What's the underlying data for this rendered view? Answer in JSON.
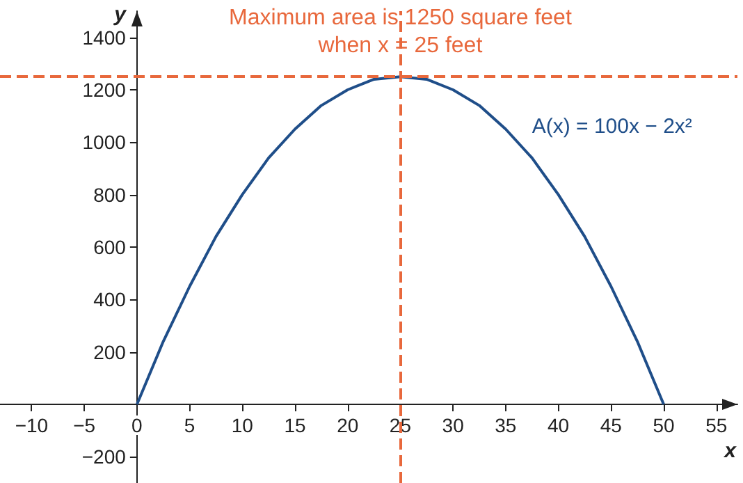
{
  "chart_data": {
    "type": "line",
    "x": [
      0,
      2.5,
      5,
      7.5,
      10,
      12.5,
      15,
      17.5,
      20,
      22.5,
      25,
      27.5,
      30,
      32.5,
      35,
      37.5,
      40,
      42.5,
      45,
      47.5,
      50
    ],
    "series": [
      {
        "name": "A(x) = 100x − 2x²",
        "color": "#1f4e89",
        "values": [
          0,
          240,
          450,
          640,
          800,
          940,
          1050,
          1140,
          1200,
          1240,
          1250,
          1240,
          1200,
          1140,
          1050,
          940,
          800,
          640,
          450,
          240,
          0
        ]
      }
    ],
    "xlabel": "x",
    "ylabel": "y",
    "xlim": [
      -13,
      57
    ],
    "ylim": [
      -300,
      1500
    ],
    "xticks": [
      -10,
      -5,
      0,
      5,
      10,
      15,
      20,
      25,
      30,
      35,
      40,
      45,
      50,
      55
    ],
    "yticks": [
      -200,
      200,
      400,
      600,
      800,
      1000,
      1200,
      1400
    ],
    "ref_lines": [
      {
        "axis": "y",
        "value": 1250,
        "color": "#e8683c",
        "line_style": "dashed"
      },
      {
        "axis": "x",
        "value": 25,
        "color": "#e8683c",
        "line_style": "dashed"
      }
    ],
    "annotations": [
      {
        "text": "Maximum area is 1250 square feet\nwhen x = 25 feet",
        "x": 25,
        "y": 1250
      }
    ],
    "grid": false,
    "legend": false,
    "marker": "none",
    "line_style": "solid"
  }
}
